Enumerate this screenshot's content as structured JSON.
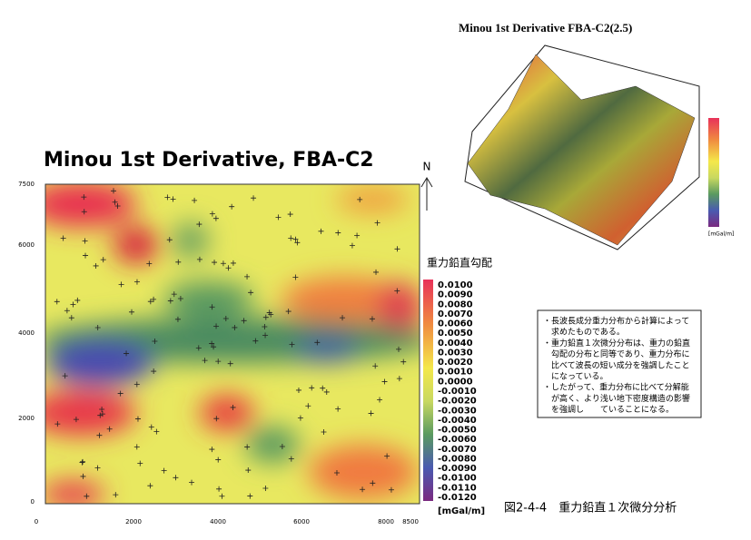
{
  "map": {
    "title": "Minou 1st Derivative, FBA-C2",
    "north": "N",
    "xticks": [
      "0",
      "2000",
      "4000",
      "6000",
      "8000",
      "8500"
    ],
    "yticks": [
      "7500",
      "6000",
      "4000",
      "2000",
      "0"
    ],
    "colorbar_title": "重力鉛直勾配",
    "colorbar_labels": [
      "0.0100",
      "0.0090",
      "0.0080",
      "0.0070",
      "0.0060",
      "0.0050",
      "0.0040",
      "0.0030",
      "0.0020",
      "0.0010",
      "0.0000",
      "-0.0010",
      "-0.0020",
      "-0.0030",
      "-0.0040",
      "-0.0050",
      "-0.0060",
      "-0.0070",
      "-0.0080",
      "-0.0090",
      "-0.0100",
      "-0.0110",
      "-0.0120"
    ],
    "colorbar_unit": "[mGal/m]"
  },
  "surface": {
    "title": "Minou 1st Derivative FBA-C2(2.5)",
    "colorbar_unit": "[mGal/m]"
  },
  "note": {
    "lines": [
      "・長波長成分重力分布から計算によって",
      "　求めたものである。",
      "・重力鉛直１次微分分布は、重力の鉛直",
      "　勾配の分布と同等であり、重力分布に",
      "　比べて波長の短い成分を強調したこと",
      "　になっている。",
      "・したがって、重力分布に比べて分解能",
      "　が高く、より浅い地下密度構造の影響",
      "　を強調し　　ていることになる。"
    ]
  },
  "caption": "図2-4-4　重力鉛直１次微分分析"
}
